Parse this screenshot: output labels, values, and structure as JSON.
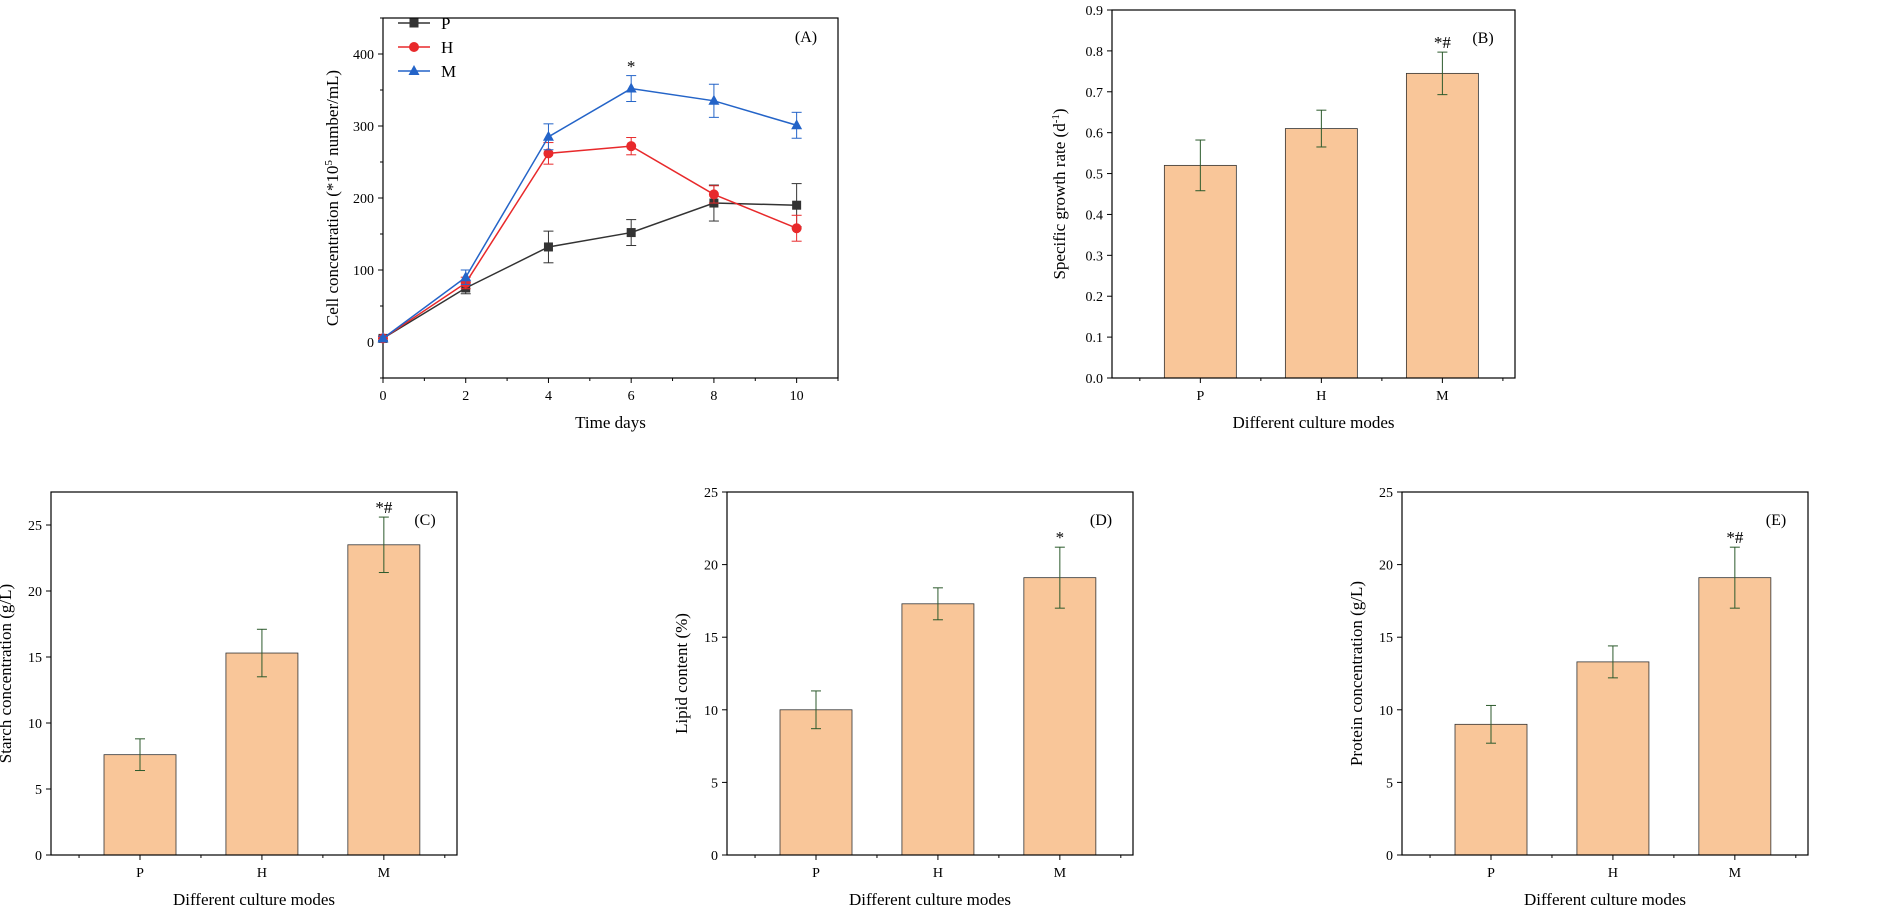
{
  "figure": {
    "background": "#ffffff",
    "bar_color": "#F9C699",
    "bar_edge": "#333333",
    "axis_color": "#000000"
  },
  "chart_data": [
    {
      "id": "A",
      "type": "line",
      "panel_label": "(A)",
      "xlabel": "Time days",
      "ylabel_main": "Cell concentration (*10",
      "ylabel_sup": "5",
      "ylabel_tail": " number/mL)",
      "xlim": [
        0,
        11
      ],
      "ylim": [
        -50,
        450
      ],
      "x": [
        0,
        2,
        4,
        6,
        8,
        10
      ],
      "xticks": [
        0,
        2,
        4,
        6,
        8,
        10
      ],
      "yticks": [
        0,
        100,
        200,
        300,
        400
      ],
      "series": [
        {
          "name": "P",
          "color": "#333333",
          "marker": "square",
          "values": [
            5,
            75,
            132,
            152,
            193,
            190
          ],
          "errors": [
            3,
            8,
            22,
            18,
            25,
            30
          ]
        },
        {
          "name": "H",
          "color": "#E8292B",
          "marker": "circle",
          "values": [
            5,
            82,
            262,
            272,
            205,
            158
          ],
          "errors": [
            3,
            8,
            15,
            12,
            12,
            18
          ]
        },
        {
          "name": "M",
          "color": "#2464C8",
          "marker": "triangle",
          "values": [
            5,
            90,
            285,
            352,
            335,
            301
          ],
          "errors": [
            3,
            10,
            18,
            18,
            23,
            18
          ]
        }
      ],
      "annotations": [
        {
          "text": "*",
          "x": 6,
          "y": 375
        }
      ],
      "legend": "top-left"
    },
    {
      "id": "B",
      "type": "bar",
      "panel_label": "(B)",
      "xlabel": "Different culture modes",
      "ylabel_main": "Specific growth rate (d",
      "ylabel_sup": "-1",
      "ylabel_tail": ")",
      "categories": [
        "P",
        "H",
        "M"
      ],
      "values": [
        0.52,
        0.61,
        0.745
      ],
      "errors": [
        0.062,
        0.045,
        0.052
      ],
      "sig": [
        "",
        "",
        "*#"
      ],
      "ylim": [
        0,
        0.9
      ],
      "yticks": [
        "0.0",
        "0.1",
        "0.2",
        "0.3",
        "0.4",
        "0.5",
        "0.6",
        "0.7",
        "0.8",
        "0.9"
      ]
    },
    {
      "id": "C",
      "type": "bar",
      "panel_label": "(C)",
      "xlabel": "Different culture modes",
      "ylabel_main": "Starch concentration (g/L)",
      "categories": [
        "P",
        "H",
        "M"
      ],
      "values": [
        7.6,
        15.3,
        23.5
      ],
      "errors": [
        1.2,
        1.8,
        2.1
      ],
      "sig": [
        "",
        "",
        "*#"
      ],
      "ylim": [
        0,
        27.5
      ],
      "yticks": [
        "0",
        "5",
        "10",
        "15",
        "20",
        "25"
      ]
    },
    {
      "id": "D",
      "type": "bar",
      "panel_label": "(D)",
      "xlabel": "Different culture modes",
      "ylabel_main": "Lipid content (%)",
      "categories": [
        "P",
        "H",
        "M"
      ],
      "values": [
        10.0,
        17.3,
        19.1
      ],
      "errors": [
        1.3,
        1.1,
        2.1
      ],
      "sig": [
        "",
        "",
        "*"
      ],
      "ylim": [
        0,
        25
      ],
      "yticks": [
        "0",
        "5",
        "10",
        "15",
        "20",
        "25"
      ]
    },
    {
      "id": "E",
      "type": "bar",
      "panel_label": "(E)",
      "xlabel": "Different culture modes",
      "ylabel_main": "Protein concentration (g/L)",
      "categories": [
        "P",
        "H",
        "M"
      ],
      "values": [
        9.0,
        13.3,
        19.1
      ],
      "errors": [
        1.3,
        1.1,
        2.1
      ],
      "sig": [
        "",
        "",
        "*#"
      ],
      "ylim": [
        0,
        25
      ],
      "yticks": [
        "0",
        "5",
        "10",
        "15",
        "20",
        "25"
      ]
    }
  ]
}
